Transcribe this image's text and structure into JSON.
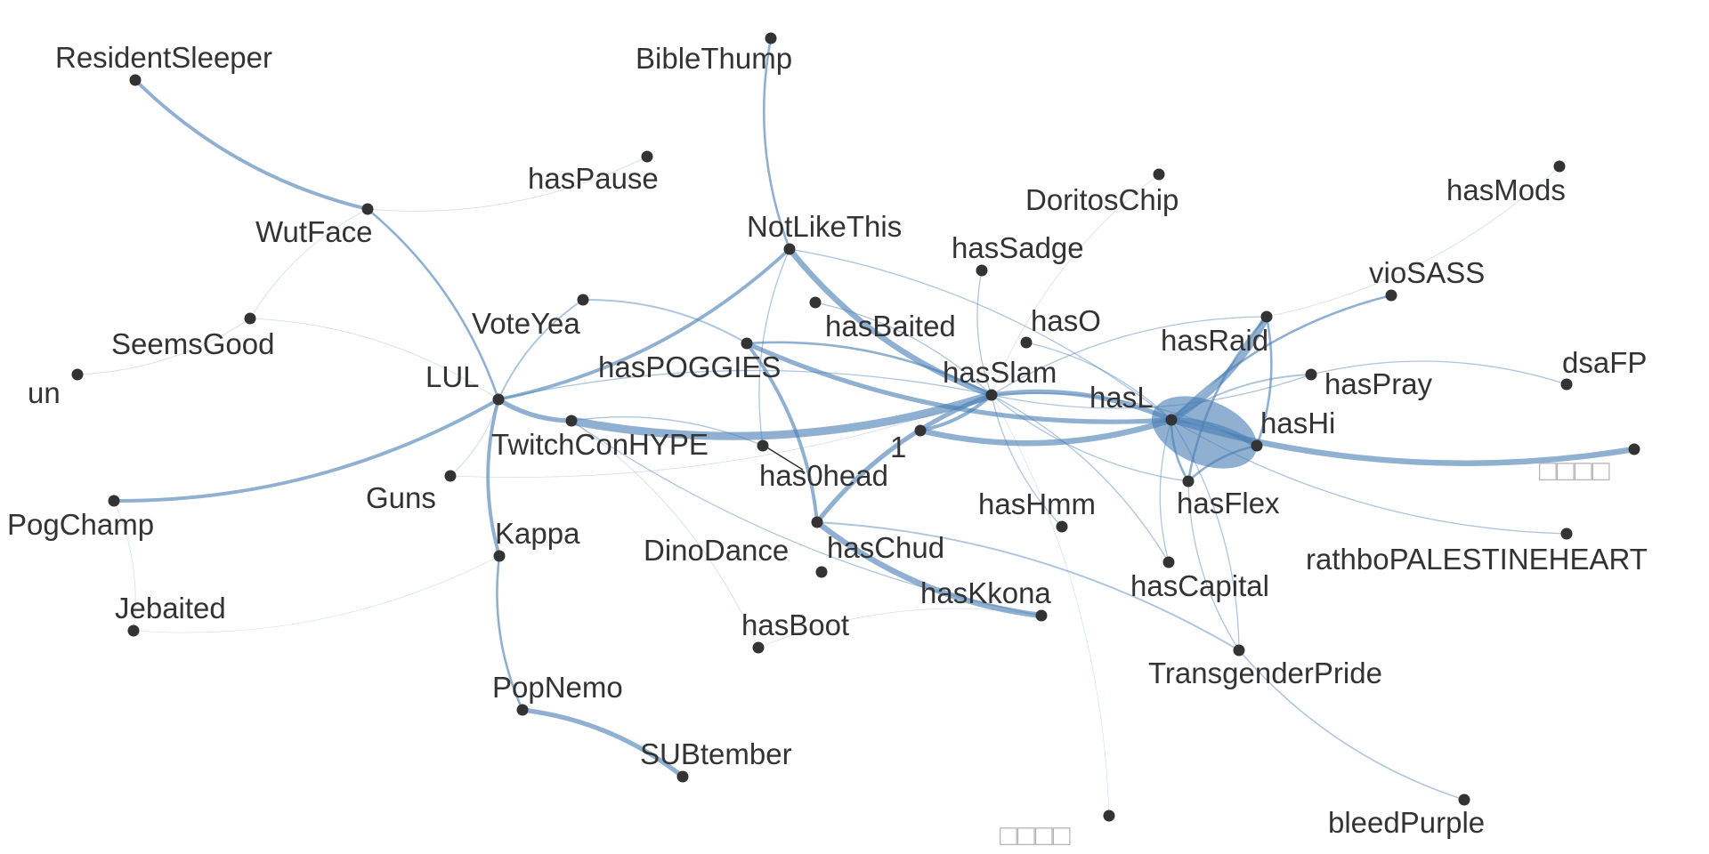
{
  "graph": {
    "nodes": [
      {
        "id": "ResidentSleeper",
        "label": "ResidentSleeper"
      },
      {
        "id": "BibleThump",
        "label": "BibleThump"
      },
      {
        "id": "hasPause",
        "label": "hasPause"
      },
      {
        "id": "WutFace",
        "label": "WutFace"
      },
      {
        "id": "NotLikeThis",
        "label": "NotLikeThis"
      },
      {
        "id": "DoritosChip",
        "label": "DoritosChip"
      },
      {
        "id": "hasMods",
        "label": "hasMods"
      },
      {
        "id": "hasSadge",
        "label": "hasSadge"
      },
      {
        "id": "vioSASS",
        "label": "vioSASS"
      },
      {
        "id": "SeemsGood",
        "label": "SeemsGood"
      },
      {
        "id": "VoteYea",
        "label": "VoteYea"
      },
      {
        "id": "hasBaited",
        "label": "hasBaited"
      },
      {
        "id": "hasO",
        "label": "hasO"
      },
      {
        "id": "hasRaid",
        "label": "hasRaid"
      },
      {
        "id": "dsaFP",
        "label": "dsaFP"
      },
      {
        "id": "un",
        "label": "un"
      },
      {
        "id": "LUL",
        "label": "LUL"
      },
      {
        "id": "hasPOGGIES",
        "label": "hasPOGGIES"
      },
      {
        "id": "hasSlam",
        "label": "hasSlam"
      },
      {
        "id": "hasPray",
        "label": "hasPray"
      },
      {
        "id": "hasL",
        "label": "hasL"
      },
      {
        "id": "hasHi",
        "label": "hasHi"
      },
      {
        "id": "TwitchConHYPE",
        "label": "TwitchConHYPE"
      },
      {
        "id": "one",
        "label": "1"
      },
      {
        "id": "has0head",
        "label": "has0head"
      },
      {
        "id": "boxes1",
        "label": "□□□□"
      },
      {
        "id": "Guns",
        "label": "Guns"
      },
      {
        "id": "hasHmm",
        "label": "hasHmm"
      },
      {
        "id": "hasFlex",
        "label": "hasFlex"
      },
      {
        "id": "PogChamp",
        "label": "PogChamp"
      },
      {
        "id": "Kappa",
        "label": "Kappa"
      },
      {
        "id": "hasChud",
        "label": "hasChud"
      },
      {
        "id": "rathboPALESTINEHEART",
        "label": "rathboPALESTINEHEART"
      },
      {
        "id": "DinoDance",
        "label": "DinoDance"
      },
      {
        "id": "hasKkona",
        "label": "hasKkona"
      },
      {
        "id": "hasCapital",
        "label": "hasCapital"
      },
      {
        "id": "Jebaited",
        "label": "Jebaited"
      },
      {
        "id": "hasBoot",
        "label": "hasBoot"
      },
      {
        "id": "TransgenderPride",
        "label": "TransgenderPride"
      },
      {
        "id": "PopNemo",
        "label": "PopNemo"
      },
      {
        "id": "SUBtember",
        "label": "SUBtember"
      },
      {
        "id": "bleedPurple",
        "label": "bleedPurple"
      },
      {
        "id": "boxes2",
        "label": "□□□□"
      }
    ],
    "edges": [
      {
        "from": "ResidentSleeper",
        "to": "WutFace",
        "weight": 3
      },
      {
        "from": "WutFace",
        "to": "LUL",
        "weight": 2
      },
      {
        "from": "BibleThump",
        "to": "NotLikeThis",
        "weight": 2
      },
      {
        "from": "NotLikeThis",
        "to": "LUL",
        "weight": 3
      },
      {
        "from": "NotLikeThis",
        "to": "hasSlam",
        "weight": 5
      },
      {
        "from": "NotLikeThis",
        "to": "hasL",
        "weight": 1
      },
      {
        "from": "NotLikeThis",
        "to": "has0head",
        "weight": 1
      },
      {
        "from": "LUL",
        "to": "PogChamp",
        "weight": 3
      },
      {
        "from": "LUL",
        "to": "Kappa",
        "weight": 3
      },
      {
        "from": "LUL",
        "to": "VoteYea",
        "weight": 1.5
      },
      {
        "from": "LUL",
        "to": "TwitchConHYPE",
        "weight": 4
      },
      {
        "from": "LUL",
        "to": "hasSlam",
        "weight": 1
      },
      {
        "from": "LUL",
        "to": "SeemsGood",
        "weight": 0.6
      },
      {
        "from": "LUL",
        "to": "Guns",
        "weight": 0.8
      },
      {
        "from": "TwitchConHYPE",
        "to": "hasSlam",
        "weight": 7
      },
      {
        "from": "hasPOGGIES",
        "to": "hasSlam",
        "weight": 2
      },
      {
        "from": "hasPOGGIES",
        "to": "hasL",
        "weight": 4
      },
      {
        "from": "hasPOGGIES",
        "to": "hasChud",
        "weight": 3
      },
      {
        "from": "hasPOGGIES",
        "to": "VoteYea",
        "weight": 1.5
      },
      {
        "from": "hasSlam",
        "to": "hasL",
        "weight": 4
      },
      {
        "from": "hasSlam",
        "to": "hasChud",
        "weight": 4
      },
      {
        "from": "hasSlam",
        "to": "one",
        "weight": 3
      },
      {
        "from": "hasSlam",
        "to": "hasHmm",
        "weight": 1
      },
      {
        "from": "hasSlam",
        "to": "hasCapital",
        "weight": 1
      },
      {
        "from": "hasSlam",
        "to": "hasFlex",
        "weight": 1
      },
      {
        "from": "hasSlam",
        "to": "hasRaid",
        "weight": 1
      },
      {
        "from": "hasSlam",
        "to": "hasBaited",
        "weight": 1
      },
      {
        "from": "hasSlam",
        "to": "hasSadge",
        "weight": 1
      },
      {
        "from": "hasSlam",
        "to": "hasPray",
        "weight": 1
      },
      {
        "from": "hasSlam",
        "to": "hasHi",
        "weight": 1
      },
      {
        "from": "hasL",
        "to": "hasRaid",
        "weight": 6
      },
      {
        "from": "hasL",
        "to": "hasHi",
        "weight": 5
      },
      {
        "from": "hasL",
        "to": "boxes1",
        "weight": 5
      },
      {
        "from": "hasL",
        "to": "vioSASS",
        "weight": 2
      },
      {
        "from": "hasL",
        "to": "hasFlex",
        "weight": 2
      },
      {
        "from": "hasL",
        "to": "hasPray",
        "weight": 1.5
      },
      {
        "from": "hasL",
        "to": "rathboPALESTINEHEART",
        "weight": 1
      },
      {
        "from": "hasL",
        "to": "one",
        "weight": 5
      },
      {
        "from": "hasL",
        "to": "hasCapital",
        "weight": 1
      },
      {
        "from": "hasL",
        "to": "TransgenderPride",
        "weight": 1
      },
      {
        "from": "hasRaid",
        "to": "hasMods",
        "weight": 0.6
      },
      {
        "from": "hasRaid",
        "to": "hasHi",
        "weight": 2
      },
      {
        "from": "hasRaid",
        "to": "hasFlex",
        "weight": 2
      },
      {
        "from": "hasPray",
        "to": "dsaFP",
        "weight": 1
      },
      {
        "from": "hasHi",
        "to": "hasFlex",
        "weight": 2
      },
      {
        "from": "TwitchConHYPE",
        "to": "has0head",
        "weight": 1
      },
      {
        "from": "TwitchConHYPE",
        "to": "hasKkona",
        "weight": 1
      },
      {
        "from": "TwitchConHYPE",
        "to": "hasBoot",
        "weight": 0.6
      },
      {
        "from": "hasChud",
        "to": "hasKkona",
        "weight": 5
      },
      {
        "from": "hasChud",
        "to": "TransgenderPride",
        "weight": 1.5
      },
      {
        "from": "Kappa",
        "to": "PopNemo",
        "weight": 2
      },
      {
        "from": "PopNemo",
        "to": "SUBtember",
        "weight": 4
      },
      {
        "from": "TransgenderPride",
        "to": "bleedPurple",
        "weight": 1.2
      },
      {
        "from": "TransgenderPride",
        "to": "hasFlex",
        "weight": 1
      },
      {
        "from": "un",
        "to": "SeemsGood",
        "weight": 0.6
      },
      {
        "from": "PogChamp",
        "to": "Jebaited",
        "weight": 0.5
      },
      {
        "from": "WutFace",
        "to": "hasPause",
        "weight": 0.6
      },
      {
        "from": "SeemsGood",
        "to": "WutFace",
        "weight": 0.6
      },
      {
        "from": "Jebaited",
        "to": "Kappa",
        "weight": 0.4
      },
      {
        "from": "hasSlam",
        "to": "boxes2",
        "weight": 0.4
      },
      {
        "from": "DoritosChip",
        "to": "hasSlam",
        "weight": 0.5
      },
      {
        "from": "hasBoot",
        "to": "hasKkona",
        "weight": 0.5
      },
      {
        "from": "Guns",
        "to": "hasSlam",
        "weight": 0.5
      },
      {
        "from": "hasO",
        "to": "hasL",
        "weight": 1
      }
    ]
  }
}
